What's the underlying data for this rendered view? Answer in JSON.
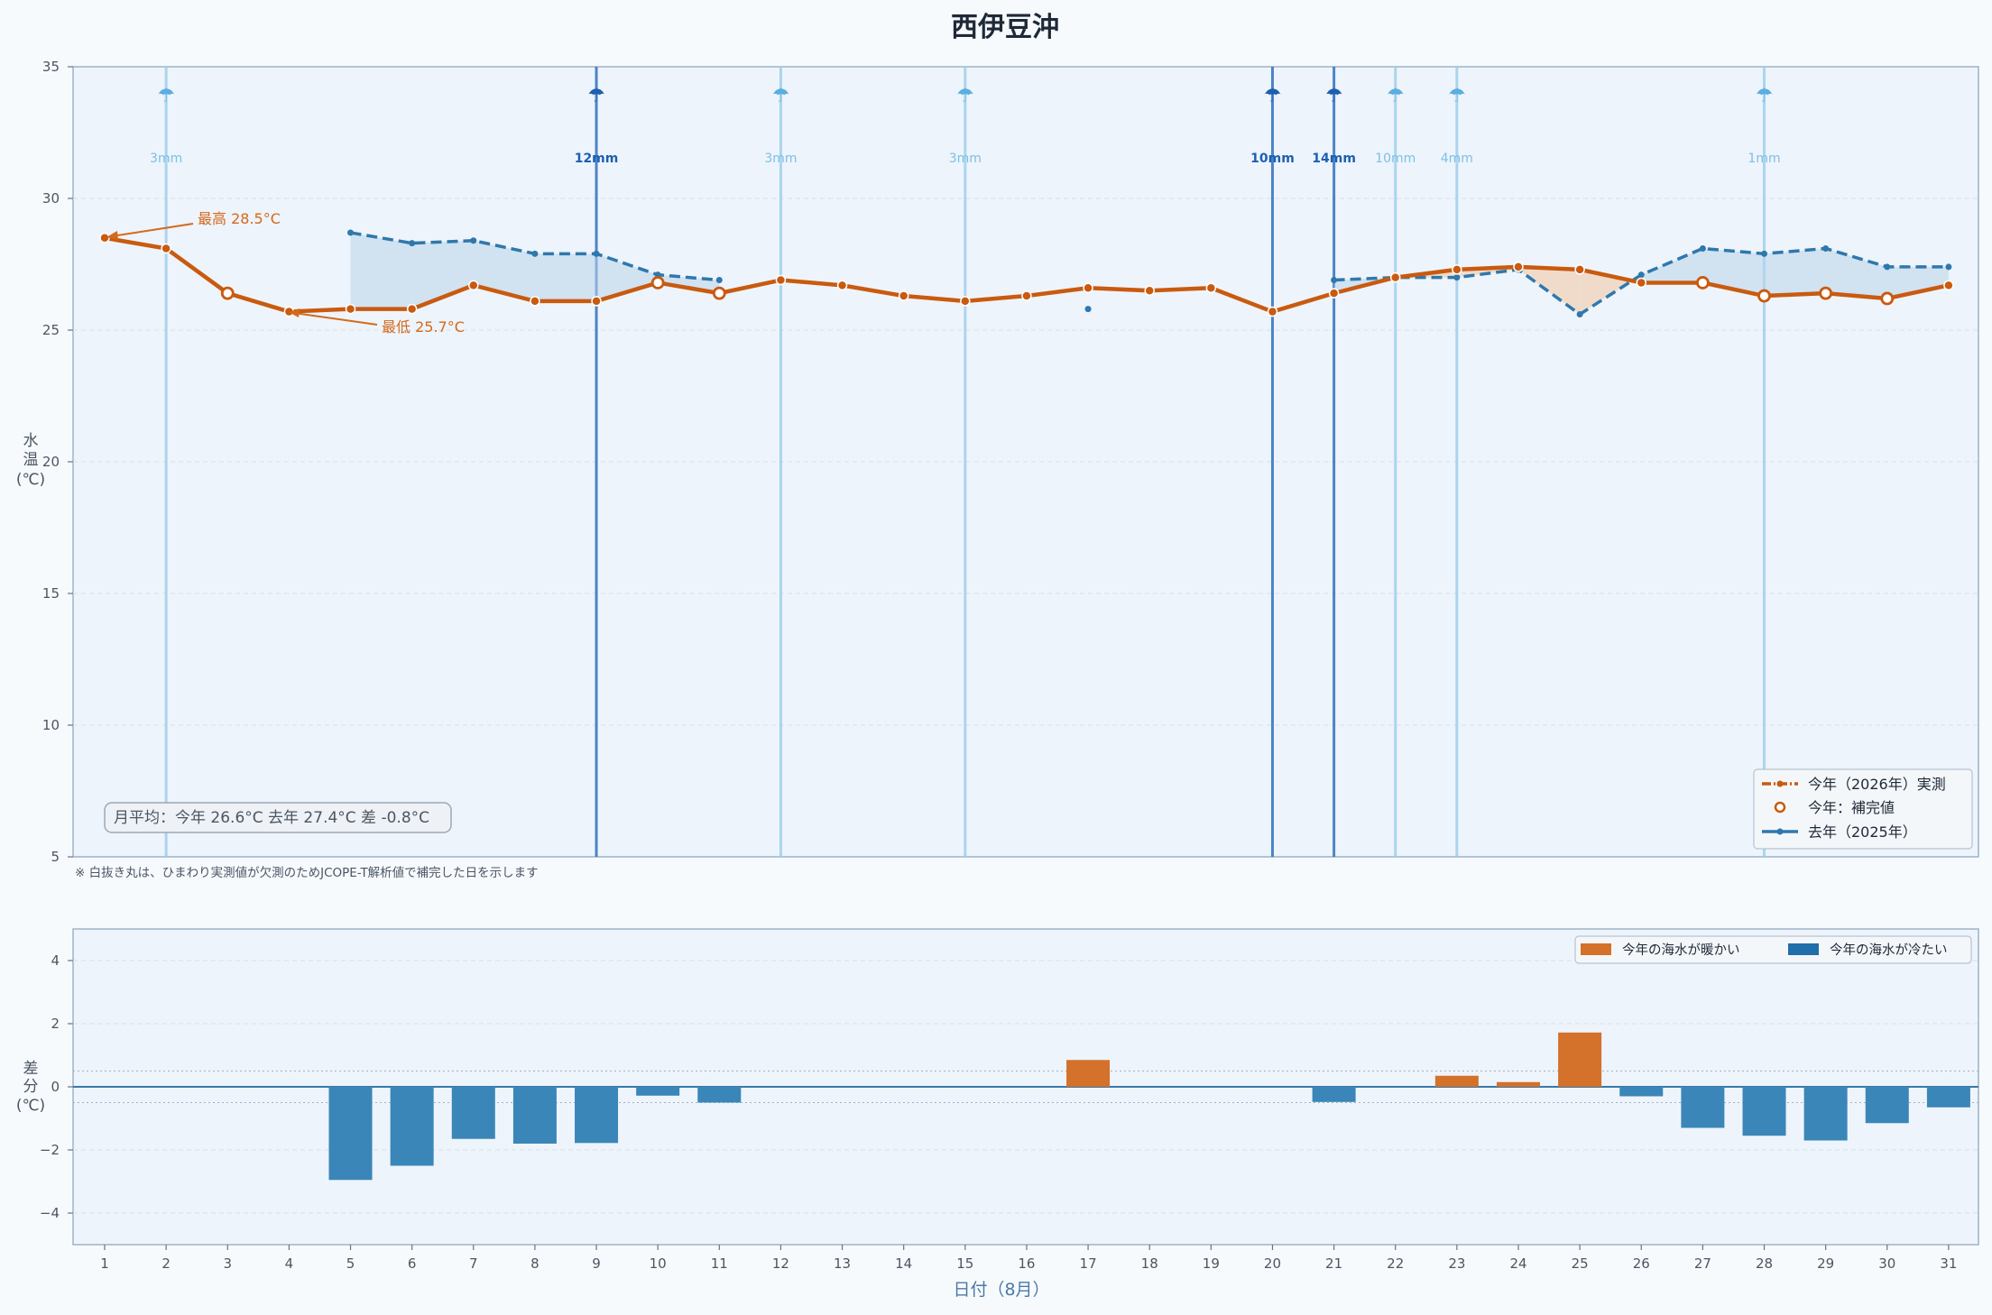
{
  "title": "西伊豆沖",
  "chart_data": [
    {
      "type": "line",
      "title": "西伊豆沖",
      "ylabel": "水温 (℃)",
      "ylim": [
        5,
        35
      ],
      "yticks": [
        5,
        10,
        15,
        20,
        25,
        30,
        35
      ],
      "x": [
        1,
        2,
        3,
        4,
        5,
        6,
        7,
        8,
        9,
        10,
        11,
        12,
        13,
        14,
        15,
        16,
        17,
        18,
        19,
        20,
        21,
        22,
        23,
        24,
        25,
        26,
        27,
        28,
        29,
        30,
        31
      ],
      "series": [
        {
          "name": "今年（2026年）実測",
          "color": "#c95a0f",
          "values": [
            28.5,
            28.1,
            26.4,
            25.7,
            25.8,
            25.8,
            26.7,
            26.1,
            26.1,
            26.8,
            26.4,
            26.9,
            26.7,
            26.3,
            26.1,
            26.3,
            26.6,
            26.5,
            26.6,
            25.7,
            26.4,
            27.0,
            27.3,
            27.4,
            27.3,
            26.8,
            26.8,
            26.3,
            26.4,
            26.2,
            26.7
          ],
          "imputed_days": [
            3,
            10,
            11,
            27,
            28,
            29,
            30
          ]
        },
        {
          "name": "去年（2025年）",
          "color": "#2e78ad",
          "values": [
            null,
            null,
            null,
            null,
            28.7,
            28.3,
            28.4,
            27.9,
            27.9,
            27.1,
            26.9,
            null,
            null,
            null,
            null,
            null,
            25.8,
            null,
            null,
            null,
            26.9,
            27.0,
            27.0,
            27.3,
            25.6,
            27.1,
            28.1,
            27.9,
            28.1,
            27.4,
            27.4
          ]
        }
      ],
      "imputed_legend": "今年：補完値",
      "rain_events": [
        {
          "day": 2,
          "label": "3mm",
          "heavy": false
        },
        {
          "day": 9,
          "label": "12mm",
          "heavy": true
        },
        {
          "day": 12,
          "label": "3mm",
          "heavy": false
        },
        {
          "day": 15,
          "label": "3mm",
          "heavy": false
        },
        {
          "day": 20,
          "label": "10mm",
          "heavy": true
        },
        {
          "day": 21,
          "label": "14mm",
          "heavy": true
        },
        {
          "day": 22,
          "label": "10mm",
          "heavy": false
        },
        {
          "day": 23,
          "label": "4mm",
          "heavy": false
        },
        {
          "day": 28,
          "label": "1mm",
          "heavy": false
        }
      ],
      "annotations": {
        "max": {
          "day": 1,
          "value": 28.5,
          "text": "最高 28.5°C"
        },
        "min": {
          "day": 4,
          "value": 25.7,
          "text": "最低 25.7°C"
        }
      },
      "summary": "月平均：今年 26.6°C  去年 27.4°C  差 -0.8°C",
      "legend_position": "bottom-right",
      "grid": true
    },
    {
      "type": "bar",
      "ylabel": "差分 (℃)",
      "ylim": [
        -5,
        5
      ],
      "yticks": [
        -4,
        -2,
        0,
        2,
        4
      ],
      "xlabel": "日付（8月）",
      "categories": [
        "1",
        "2",
        "3",
        "4",
        "5",
        "6",
        "7",
        "8",
        "9",
        "10",
        "11",
        "12",
        "13",
        "14",
        "15",
        "16",
        "17",
        "18",
        "19",
        "20",
        "21",
        "22",
        "23",
        "24",
        "25",
        "26",
        "27",
        "28",
        "29",
        "30",
        "31"
      ],
      "values": [
        null,
        null,
        null,
        null,
        -2.95,
        -2.5,
        -1.65,
        -1.8,
        -1.78,
        -0.28,
        -0.5,
        null,
        null,
        null,
        null,
        null,
        0.85,
        null,
        null,
        null,
        -0.48,
        null,
        0.35,
        0.15,
        1.72,
        -0.3,
        -1.3,
        -1.55,
        -1.7,
        -1.15,
        -0.65
      ],
      "legend": [
        {
          "name": "今年の海水が暖かい",
          "color": "#d4712a"
        },
        {
          "name": "今年の海水が冷たい",
          "color": "#3a86b8"
        }
      ],
      "legend_position": "top-right"
    }
  ],
  "footnote": "※ 白抜き丸は、ひまわり実測値が欠測のためJCOPE-T解析値で補完した日を示します"
}
